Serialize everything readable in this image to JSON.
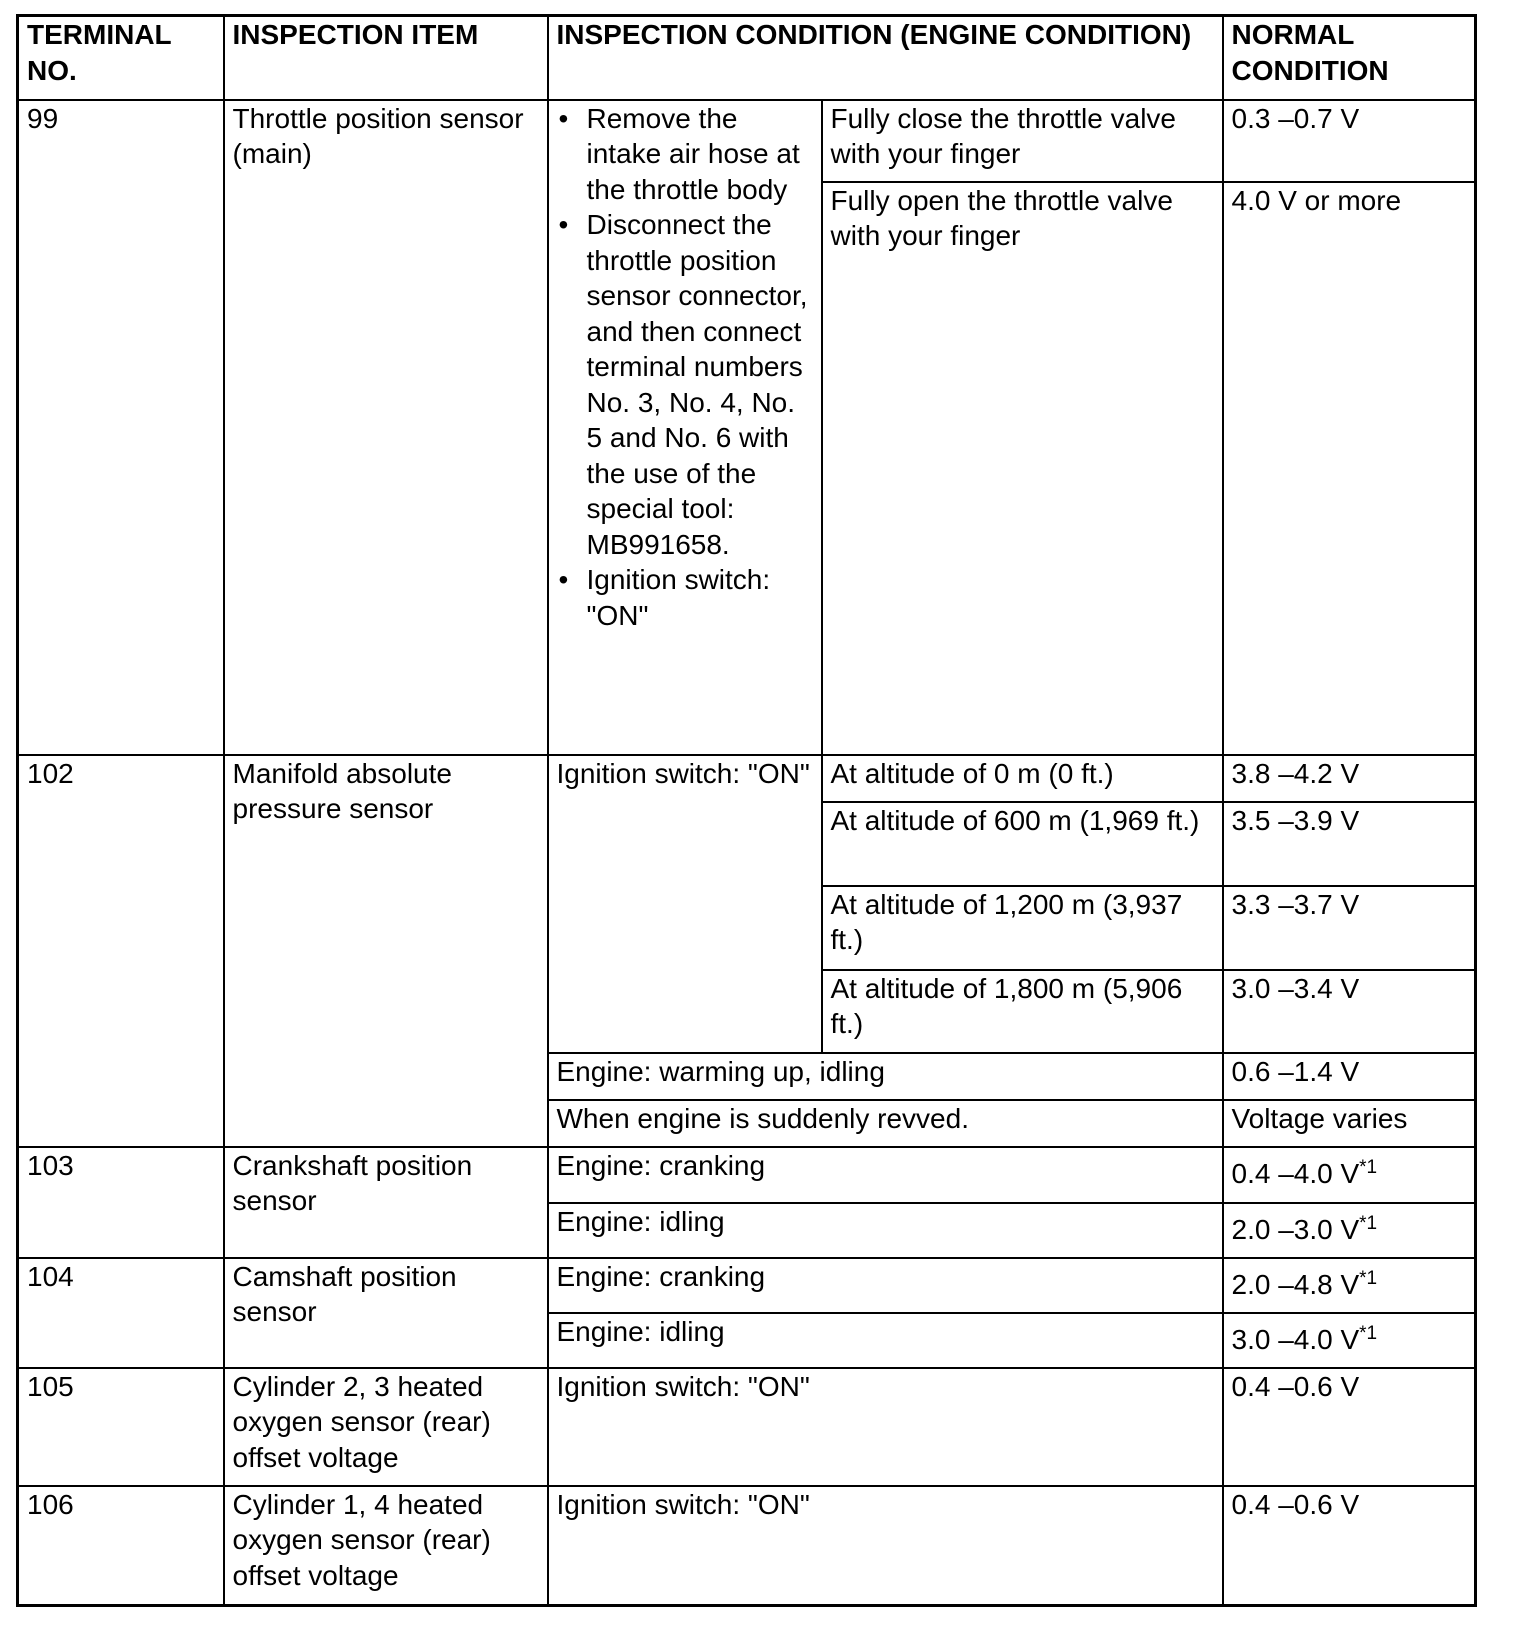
{
  "header": {
    "terminal_no": "TERMINAL NO.",
    "inspection_item": "INSPECTION ITEM",
    "inspection_condition": "INSPECTION CONDITION (ENGINE CONDITION)",
    "normal_condition": "NORMAL CONDITION"
  },
  "r99": {
    "terminal": "99",
    "item": "Throttle position sensor (main)",
    "bullets": [
      "Remove the intake air hose at the throttle body",
      "Disconnect the throttle position sensor connector, and then connect terminal numbers No. 3, No. 4, No. 5 and No. 6 with the use of the special tool: MB991658.",
      "Ignition switch: \"ON\""
    ],
    "sub": [
      {
        "condition": "Fully close the throttle valve with your finger",
        "normal": "0.3 –0.7 V"
      },
      {
        "condition": "Fully open the throttle valve with your finger",
        "normal": "4.0 V or more"
      }
    ]
  },
  "r102": {
    "terminal": "102",
    "item": "Manifold absolute pressure sensor",
    "condition": "Ignition switch: \"ON\"",
    "sub": [
      {
        "condition": "At altitude of 0 m (0 ft.)",
        "normal": "3.8 –4.2 V"
      },
      {
        "condition": "At altitude of 600 m (1,969 ft.)",
        "normal": "3.5 –3.9 V"
      },
      {
        "condition": "At altitude of 1,200 m (3,937 ft.)",
        "normal": "3.3 –3.7 V"
      },
      {
        "condition": "At altitude of 1,800 m (5,906 ft.)",
        "normal": "3.0 –3.4 V"
      }
    ],
    "extra": [
      {
        "condition": "Engine: warming up, idling",
        "normal": "0.6 –1.4 V"
      },
      {
        "condition": "When engine is suddenly revved.",
        "normal": "Voltage varies"
      }
    ]
  },
  "r103": {
    "terminal": "103",
    "item": "Crankshaft position sensor",
    "sub": [
      {
        "condition": "Engine: cranking",
        "normal": "0.4 –4.0 V",
        "note": "*1"
      },
      {
        "condition": "Engine: idling",
        "normal": "2.0 –3.0 V",
        "note": "*1"
      }
    ]
  },
  "r104": {
    "terminal": "104",
    "item": "Camshaft position sensor",
    "sub": [
      {
        "condition": "Engine: cranking",
        "normal": "2.0 –4.8 V",
        "note": "*1"
      },
      {
        "condition": "Engine: idling",
        "normal": "3.0 –4.0 V",
        "note": "*1"
      }
    ]
  },
  "r105": {
    "terminal": "105",
    "item": "Cylinder 2, 3 heated oxygen sensor (rear) offset voltage",
    "condition": "Ignition switch: \"ON\"",
    "normal": "0.4 –0.6 V"
  },
  "r106": {
    "terminal": "106",
    "item": "Cylinder 1, 4 heated oxygen sensor (rear) offset voltage",
    "condition": "Ignition switch: \"ON\"",
    "normal": "0.4 –0.6 V"
  }
}
